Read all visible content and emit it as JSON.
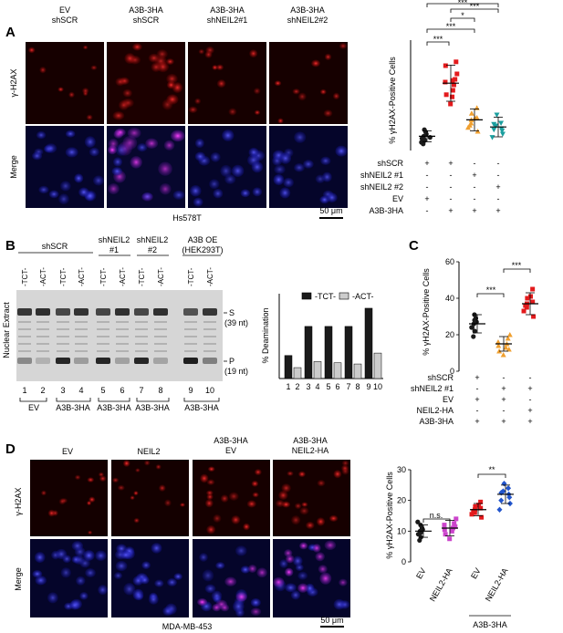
{
  "panel_A": {
    "letter": "A",
    "columns": [
      {
        "l1": "EV",
        "l2": "shSCR"
      },
      {
        "l1": "A3B-3HA",
        "l2": "shSCR"
      },
      {
        "l1": "A3B-3HA",
        "l2": "shNEIL2#1"
      },
      {
        "l1": "A3B-3HA",
        "l2": "shNEIL2#2"
      }
    ],
    "row_labels": [
      "γ-H2AX",
      "Merge"
    ],
    "cell_line": "Hs578T",
    "scale_bar": "50 μm",
    "ylabel": "% γH2AX-Positive Cells",
    "sig": [
      "***",
      "***",
      "*",
      "***",
      "***"
    ],
    "conditions": [
      {
        "name": "shSCR",
        "signs": [
          "+",
          "+",
          "-",
          "-"
        ]
      },
      {
        "name": "shNEIL2 #1",
        "signs": [
          "-",
          "-",
          "+",
          "-"
        ]
      },
      {
        "name": "shNEIL2 #2",
        "signs": [
          "-",
          "-",
          "-",
          "+"
        ]
      },
      {
        "name": "EV",
        "signs": [
          "+",
          "-",
          "-",
          "-"
        ]
      },
      {
        "name": "A3B-3HA",
        "signs": [
          "-",
          "+",
          "+",
          "+"
        ]
      }
    ]
  },
  "panel_B": {
    "letter": "B",
    "groups": [
      {
        "l1": "shSCR",
        "l2": ""
      },
      {
        "l1": "shNEIL2",
        "l2": "#1"
      },
      {
        "l1": "shNEIL2",
        "l2": "#2"
      },
      {
        "l1": "A3B OE",
        "l2": "(HEK293T)"
      }
    ],
    "lane_labels": [
      "-TCT-",
      "-ACT-",
      "-TCT-",
      "-ACT-",
      "-TCT-",
      "-ACT-",
      "-TCT-",
      "-ACT-",
      "-TCT-",
      "-ACT-"
    ],
    "ylabel": "Nuclear Extract",
    "band_S": "S",
    "band_S_nt": "(39 nt)",
    "band_P": "P",
    "band_P_nt": "(19 nt)",
    "lane_numbers": [
      "1",
      "2",
      "3",
      "4",
      "5",
      "6",
      "7",
      "8",
      "9",
      "10"
    ],
    "bottom_labels": [
      "EV",
      "A3B-3HA",
      "A3B-3HA",
      "A3B-3HA",
      "A3B-3HA"
    ],
    "legend": [
      "-TCT-",
      "-ACT-"
    ]
  },
  "panel_C": {
    "letter": "C",
    "ylabel": "% γH2AX-Positive Cells",
    "ticks": [
      "0",
      "20",
      "40",
      "60"
    ],
    "sig": [
      "***",
      "***"
    ],
    "conditions": [
      {
        "name": "shSCR",
        "signs": [
          "+",
          "-",
          "-"
        ]
      },
      {
        "name": "shNEIL2 #1",
        "signs": [
          "-",
          "+",
          "+"
        ]
      },
      {
        "name": "EV",
        "signs": [
          "+",
          "+",
          "-"
        ]
      },
      {
        "name": "NEIL2-HA",
        "signs": [
          "-",
          "-",
          "+"
        ]
      },
      {
        "name": "A3B-3HA",
        "signs": [
          "+",
          "+",
          "+"
        ]
      }
    ]
  },
  "panel_D": {
    "letter": "D",
    "columns": [
      {
        "l1": "",
        "l2": "EV"
      },
      {
        "l1": "",
        "l2": "NEIL2"
      },
      {
        "l1": "A3B-3HA",
        "l2": "EV"
      },
      {
        "l1": "A3B-3HA",
        "l2": "NEIL2-HA"
      }
    ],
    "row_labels": [
      "γ-H2AX",
      "Merge"
    ],
    "cell_line": "MDA-MB-453",
    "scale_bar": "50 μm",
    "ylabel": "% γH2AX-Positive Cells",
    "ticks": [
      "0",
      "10",
      "20",
      "30"
    ],
    "sig": [
      "n.s.",
      "**"
    ],
    "xticks": [
      "EV",
      "NEIL2-HA",
      "EV",
      "NEIL2-HA"
    ],
    "group_label": "A3B-3HA"
  },
  "chart_data": [
    {
      "type": "scatter",
      "panel": "A",
      "ylabel": "% γH2AX-Positive Cells",
      "ylim": [
        0,
        20
      ],
      "series": [
        {
          "mean": 2.6,
          "sd": 1.0,
          "color": "#1a1a1a",
          "values": [
            1.2,
            1.8,
            2.2,
            2.6,
            3.0,
            3.4,
            2.0,
            1.5,
            3.8,
            2.4
          ]
        },
        {
          "mean": 12.3,
          "sd": 3.3,
          "color": "#e31a1c",
          "values": [
            8.5,
            10.2,
            11.0,
            12.0,
            12.5,
            13.0,
            14.0,
            15.5,
            16.2,
            9.8,
            12.8
          ]
        },
        {
          "mean": 5.6,
          "sd": 2.0,
          "color": "#f0a030",
          "values": [
            3.5,
            4.2,
            5.0,
            5.6,
            6.0,
            6.8,
            7.8,
            4.6,
            5.9
          ]
        },
        {
          "mean": 4.3,
          "sd": 1.8,
          "color": "#1a9e9e",
          "values": [
            2.4,
            3.0,
            3.6,
            4.0,
            4.5,
            5.0,
            6.5,
            3.8,
            4.8
          ]
        }
      ]
    },
    {
      "type": "bar",
      "panel": "B",
      "ylabel": "% Deamination",
      "categories": [
        "1",
        "2",
        "3",
        "4",
        "5",
        "6",
        "7",
        "8",
        "9",
        "10"
      ],
      "values": [
        19,
        9,
        43,
        14,
        43,
        13,
        43,
        12,
        58,
        21
      ],
      "series_names": [
        "-TCT-",
        "-ACT-"
      ],
      "colors": [
        "#1a1a1a",
        "#cccccc"
      ],
      "ylim": [
        0,
        70
      ]
    },
    {
      "type": "scatter",
      "panel": "C",
      "ylabel": "% γH2AX-Positive Cells",
      "ylim": [
        0,
        60
      ],
      "series": [
        {
          "mean": 26,
          "sd": 5,
          "color": "#1a1a1a",
          "values": [
            19,
            22,
            24,
            26,
            27,
            29,
            31,
            24,
            28
          ]
        },
        {
          "mean": 15,
          "sd": 4,
          "color": "#f0a030",
          "values": [
            9,
            11,
            13,
            15,
            16,
            18,
            20,
            14,
            12
          ]
        },
        {
          "mean": 37,
          "sd": 6,
          "color": "#e31a1c",
          "values": [
            30,
            33,
            35,
            37,
            38,
            40,
            45,
            36,
            41
          ]
        }
      ]
    },
    {
      "type": "scatter",
      "panel": "D",
      "ylabel": "% γH2AX-Positive Cells",
      "ylim": [
        0,
        30
      ],
      "series": [
        {
          "mean": 10,
          "sd": 2,
          "color": "#1a1a1a",
          "values": [
            7,
            8,
            9,
            10,
            10.5,
            11,
            12,
            13,
            9.5
          ]
        },
        {
          "mean": 11,
          "sd": 2.5,
          "color": "#cc44cc",
          "values": [
            7.5,
            9,
            10,
            11,
            12,
            12.5,
            14,
            10.5,
            11.5
          ]
        },
        {
          "mean": 17,
          "sd": 2,
          "color": "#e31a1c",
          "values": [
            14.5,
            15.5,
            16,
            17,
            17.5,
            18,
            19.5,
            16.5,
            18.5
          ]
        },
        {
          "mean": 22,
          "sd": 3,
          "color": "#2255cc",
          "values": [
            17,
            19,
            21,
            22,
            23,
            24,
            25.5,
            22.5,
            20
          ]
        }
      ]
    }
  ]
}
